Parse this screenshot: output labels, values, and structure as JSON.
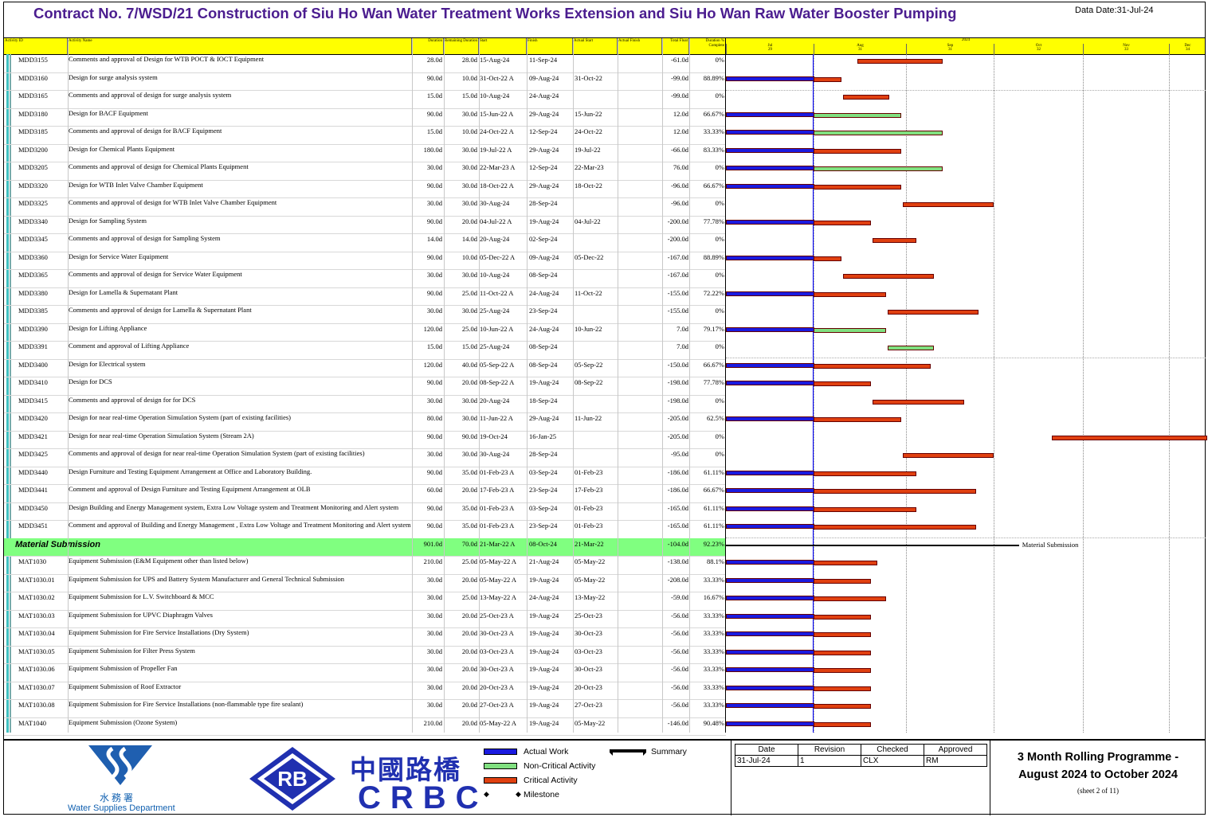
{
  "title": "Contract No. 7/WSD/21 Construction of Siu Ho Wan Water Treatment Works Extension and Siu Ho Wan Raw Water Booster Pumping",
  "data_date": "Data Date:31-Jul-24",
  "columns": {
    "id": "Activity ID",
    "name": "Activity Name",
    "duration": "Duration",
    "remaining": "Remaining Duration",
    "start": "Start",
    "finish": "Finish",
    "actual_start": "Actual Start",
    "actual_finish": "Actual Finish",
    "total_float": "Total Float",
    "pct": "Duration % Complete"
  },
  "timeline": {
    "year": "2024",
    "months": [
      "Jul",
      "Aug",
      "Sep",
      "Oct",
      "Nov",
      "Dec"
    ],
    "weeks": [
      "29",
      "31",
      "31",
      "32",
      "33",
      "34"
    ]
  },
  "summary_row": {
    "id": "Material Submission",
    "duration": "901.0d",
    "remaining": "70.0d",
    "start": "21-Mar-22 A",
    "finish": "08-Oct-24",
    "actual_start": "21-Mar-22",
    "total_float": "-104.0d",
    "pct": "92.23%",
    "bar_label": "Material Submission"
  },
  "rows": [
    {
      "id": "MDD3155",
      "name": "Comments and approval of Design for WTB POCT & IOCT Equipment",
      "duration": "28.0d",
      "remaining": "28.0d",
      "start": "15-Aug-24",
      "finish": "11-Sep-24",
      "actual_start": "",
      "total_float": "-61.0d",
      "pct": "0%"
    },
    {
      "id": "MDD3160",
      "name": "Design for surge analysis system",
      "duration": "90.0d",
      "remaining": "10.0d",
      "start": "31-Oct-22 A",
      "finish": "09-Aug-24",
      "actual_start": "31-Oct-22",
      "total_float": "-99.0d",
      "pct": "88.89%"
    },
    {
      "id": "MDD3165",
      "name": "Comments and approval of design for surge analysis system",
      "duration": "15.0d",
      "remaining": "15.0d",
      "start": "10-Aug-24",
      "finish": "24-Aug-24",
      "actual_start": "",
      "total_float": "-99.0d",
      "pct": "0%"
    },
    {
      "id": "MDD3180",
      "name": "Design for BACF Equipment",
      "duration": "90.0d",
      "remaining": "30.0d",
      "start": "15-Jun-22 A",
      "finish": "29-Aug-24",
      "actual_start": "15-Jun-22",
      "total_float": "12.0d",
      "pct": "66.67%"
    },
    {
      "id": "MDD3185",
      "name": "Comments and approval of design for BACF Equipment",
      "duration": "15.0d",
      "remaining": "10.0d",
      "start": "24-Oct-22 A",
      "finish": "12-Sep-24",
      "actual_start": "24-Oct-22",
      "total_float": "12.0d",
      "pct": "33.33%"
    },
    {
      "id": "MDD3200",
      "name": "Design for Chemical Plants Equipment",
      "duration": "180.0d",
      "remaining": "30.0d",
      "start": "19-Jul-22 A",
      "finish": "29-Aug-24",
      "actual_start": "19-Jul-22",
      "total_float": "-66.0d",
      "pct": "83.33%"
    },
    {
      "id": "MDD3205",
      "name": "Comments and approval of design for Chemical Plants Equipment",
      "duration": "30.0d",
      "remaining": "30.0d",
      "start": "22-Mar-23 A",
      "finish": "12-Sep-24",
      "actual_start": "22-Mar-23",
      "total_float": "76.0d",
      "pct": "0%"
    },
    {
      "id": "MDD3320",
      "name": "Design for WTB Inlet Valve Chamber Equipment",
      "duration": "90.0d",
      "remaining": "30.0d",
      "start": "18-Oct-22 A",
      "finish": "29-Aug-24",
      "actual_start": "18-Oct-22",
      "total_float": "-96.0d",
      "pct": "66.67%"
    },
    {
      "id": "MDD3325",
      "name": "Comments and approval of design for WTB Inlet Valve Chamber Equipment",
      "duration": "30.0d",
      "remaining": "30.0d",
      "start": "30-Aug-24",
      "finish": "28-Sep-24",
      "actual_start": "",
      "total_float": "-96.0d",
      "pct": "0%"
    },
    {
      "id": "MDD3340",
      "name": "Design for Sampling System",
      "duration": "90.0d",
      "remaining": "20.0d",
      "start": "04-Jul-22 A",
      "finish": "19-Aug-24",
      "actual_start": "04-Jul-22",
      "total_float": "-200.0d",
      "pct": "77.78%"
    },
    {
      "id": "MDD3345",
      "name": "Comments and approval of design for Sampling System",
      "duration": "14.0d",
      "remaining": "14.0d",
      "start": "20-Aug-24",
      "finish": "02-Sep-24",
      "actual_start": "",
      "total_float": "-200.0d",
      "pct": "0%"
    },
    {
      "id": "MDD3360",
      "name": "Design for Service Water Equipment",
      "duration": "90.0d",
      "remaining": "10.0d",
      "start": "05-Dec-22 A",
      "finish": "09-Aug-24",
      "actual_start": "05-Dec-22",
      "total_float": "-167.0d",
      "pct": "88.89%"
    },
    {
      "id": "MDD3365",
      "name": "Comments and approval of design for Service Water Equipment",
      "duration": "30.0d",
      "remaining": "30.0d",
      "start": "10-Aug-24",
      "finish": "08-Sep-24",
      "actual_start": "",
      "total_float": "-167.0d",
      "pct": "0%"
    },
    {
      "id": "MDD3380",
      "name": "Design for Lamella & Supernatant Plant",
      "duration": "90.0d",
      "remaining": "25.0d",
      "start": "11-Oct-22 A",
      "finish": "24-Aug-24",
      "actual_start": "11-Oct-22",
      "total_float": "-155.0d",
      "pct": "72.22%"
    },
    {
      "id": "MDD3385",
      "name": "Comments and approval of design for Lamella & Supernatant Plant",
      "duration": "30.0d",
      "remaining": "30.0d",
      "start": "25-Aug-24",
      "finish": "23-Sep-24",
      "actual_start": "",
      "total_float": "-155.0d",
      "pct": "0%"
    },
    {
      "id": "MDD3390",
      "name": "Design for Lifting Appliance",
      "duration": "120.0d",
      "remaining": "25.0d",
      "start": "10-Jun-22 A",
      "finish": "24-Aug-24",
      "actual_start": "10-Jun-22",
      "total_float": "7.0d",
      "pct": "79.17%"
    },
    {
      "id": "MDD3391",
      "name": "Comment and approval of Lifting Appliance",
      "duration": "15.0d",
      "remaining": "15.0d",
      "start": "25-Aug-24",
      "finish": "08-Sep-24",
      "actual_start": "",
      "total_float": "7.0d",
      "pct": "0%"
    },
    {
      "id": "MDD3400",
      "name": "Design for Electrical system",
      "duration": "120.0d",
      "remaining": "40.0d",
      "start": "05-Sep-22 A",
      "finish": "08-Sep-24",
      "actual_start": "05-Sep-22",
      "total_float": "-150.0d",
      "pct": "66.67%"
    },
    {
      "id": "MDD3410",
      "name": "Design for DCS",
      "duration": "90.0d",
      "remaining": "20.0d",
      "start": "08-Sep-22 A",
      "finish": "19-Aug-24",
      "actual_start": "08-Sep-22",
      "total_float": "-198.0d",
      "pct": "77.78%"
    },
    {
      "id": "MDD3415",
      "name": "Comments and approval of design for for DCS",
      "duration": "30.0d",
      "remaining": "30.0d",
      "start": "20-Aug-24",
      "finish": "18-Sep-24",
      "actual_start": "",
      "total_float": "-198.0d",
      "pct": "0%"
    },
    {
      "id": "MDD3420",
      "name": "Design for near real-time Operation Simulation System (part of existing facilities)",
      "duration": "80.0d",
      "remaining": "30.0d",
      "start": "11-Jun-22 A",
      "finish": "29-Aug-24",
      "actual_start": "11-Jun-22",
      "total_float": "-205.0d",
      "pct": "62.5%"
    },
    {
      "id": "MDD3421",
      "name": "Design for near real-time Operation Simulation System (Stream 2A)",
      "duration": "90.0d",
      "remaining": "90.0d",
      "start": "19-Oct-24",
      "finish": "16-Jan-25",
      "actual_start": "",
      "total_float": "-205.0d",
      "pct": "0%"
    },
    {
      "id": "MDD3425",
      "name": "Comments and approval of design for near real-time Operation Simulation System (part of existing facilities)",
      "duration": "30.0d",
      "remaining": "30.0d",
      "start": "30-Aug-24",
      "finish": "28-Sep-24",
      "actual_start": "",
      "total_float": "-95.0d",
      "pct": "0%"
    },
    {
      "id": "MDD3440",
      "name": "Design Furniture and Testing Equipment Arrangement at Office and Laboratory Building.",
      "duration": "90.0d",
      "remaining": "35.0d",
      "start": "01-Feb-23 A",
      "finish": "03-Sep-24",
      "actual_start": "01-Feb-23",
      "total_float": "-186.0d",
      "pct": "61.11%"
    },
    {
      "id": "MDD3441",
      "name": "Comment and approval of Design Furniture and Testing Equipment Arrangement at OLB",
      "duration": "60.0d",
      "remaining": "20.0d",
      "start": "17-Feb-23 A",
      "finish": "23-Sep-24",
      "actual_start": "17-Feb-23",
      "total_float": "-186.0d",
      "pct": "66.67%"
    },
    {
      "id": "MDD3450",
      "name": "Design Building and Energy Management system, Extra Low Voltage system and Treatment Monitoring and Alert system",
      "duration": "90.0d",
      "remaining": "35.0d",
      "start": "01-Feb-23 A",
      "finish": "03-Sep-24",
      "actual_start": "01-Feb-23",
      "total_float": "-165.0d",
      "pct": "61.11%"
    },
    {
      "id": "MDD3451",
      "name": "Comment and approval of Building and Energy Management , Extra Low Voltage and Treatment Monitoring and Alert system",
      "duration": "90.0d",
      "remaining": "35.0d",
      "start": "01-Feb-23 A",
      "finish": "23-Sep-24",
      "actual_start": "01-Feb-23",
      "total_float": "-165.0d",
      "pct": "61.11%"
    },
    {
      "id": "MAT1030",
      "name": "Equipment Submission (E&M Equipment other than listed below)",
      "duration": "210.0d",
      "remaining": "25.0d",
      "start": "05-May-22 A",
      "finish": "21-Aug-24",
      "actual_start": "05-May-22",
      "total_float": "-138.0d",
      "pct": "88.1%"
    },
    {
      "id": "MAT1030.01",
      "name": "Equipment Submission for UPS and Battery System Manufacturer and General Technical Submission",
      "duration": "30.0d",
      "remaining": "20.0d",
      "start": "05-May-22 A",
      "finish": "19-Aug-24",
      "actual_start": "05-May-22",
      "total_float": "-208.0d",
      "pct": "33.33%"
    },
    {
      "id": "MAT1030.02",
      "name": "Equipment Submission for L.V. Switchboard & MCC",
      "duration": "30.0d",
      "remaining": "25.0d",
      "start": "13-May-22 A",
      "finish": "24-Aug-24",
      "actual_start": "13-May-22",
      "total_float": "-59.0d",
      "pct": "16.67%"
    },
    {
      "id": "MAT1030.03",
      "name": "Equipment Submission for UPVC Diaphragm Valves",
      "duration": "30.0d",
      "remaining": "20.0d",
      "start": "25-Oct-23 A",
      "finish": "19-Aug-24",
      "actual_start": "25-Oct-23",
      "total_float": "-56.0d",
      "pct": "33.33%"
    },
    {
      "id": "MAT1030.04",
      "name": "Equipment Submission for Fire Service Installations (Dry System)",
      "duration": "30.0d",
      "remaining": "20.0d",
      "start": "30-Oct-23 A",
      "finish": "19-Aug-24",
      "actual_start": "30-Oct-23",
      "total_float": "-56.0d",
      "pct": "33.33%"
    },
    {
      "id": "MAT1030.05",
      "name": "Equipment Submission for Filter Press System",
      "duration": "30.0d",
      "remaining": "20.0d",
      "start": "03-Oct-23 A",
      "finish": "19-Aug-24",
      "actual_start": "03-Oct-23",
      "total_float": "-56.0d",
      "pct": "33.33%"
    },
    {
      "id": "MAT1030.06",
      "name": "Equipment Submission of Propeller Fan",
      "duration": "30.0d",
      "remaining": "20.0d",
      "start": "30-Oct-23 A",
      "finish": "19-Aug-24",
      "actual_start": "30-Oct-23",
      "total_float": "-56.0d",
      "pct": "33.33%"
    },
    {
      "id": "MAT1030.07",
      "name": "Equipment Submission of Roof Extractor",
      "duration": "30.0d",
      "remaining": "20.0d",
      "start": "20-Oct-23 A",
      "finish": "19-Aug-24",
      "actual_start": "20-Oct-23",
      "total_float": "-56.0d",
      "pct": "33.33%"
    },
    {
      "id": "MAT1030.08",
      "name": "Equipment Submission for Fire Service Installations (non-flammable type fire sealant)",
      "duration": "30.0d",
      "remaining": "20.0d",
      "start": "27-Oct-23 A",
      "finish": "19-Aug-24",
      "actual_start": "27-Oct-23",
      "total_float": "-56.0d",
      "pct": "33.33%"
    },
    {
      "id": "MAT1040",
      "name": "Equipment Submission (Ozone System)",
      "duration": "210.0d",
      "remaining": "20.0d",
      "start": "05-May-22 A",
      "finish": "19-Aug-24",
      "actual_start": "05-May-22",
      "total_float": "-146.0d",
      "pct": "90.48%"
    }
  ],
  "legend": {
    "actual": "Actual Work",
    "noncritical": "Non-Critical Activity",
    "critical": "Critical Activity",
    "milestone": "Milestone",
    "summary": "Summary"
  },
  "colors": {
    "actual": "#1a1ae0",
    "noncritical": "#80e080",
    "critical": "#e04010",
    "header": "#ffff00",
    "summary_row": "#80ff80",
    "title": "#4b1d8f"
  },
  "revision": {
    "headers": [
      "Date",
      "Revision",
      "Checked",
      "Approved"
    ],
    "values": [
      "31-Jul-24",
      "1",
      "CLX",
      "RM"
    ]
  },
  "programme": {
    "line1": "3 Month Rolling Programme -",
    "line2": "August 2024 to October 2024",
    "sheet": "(sheet 2 of 11)"
  },
  "logos": {
    "wsd_cn": "水務署",
    "wsd_en": "Water Supplies Department",
    "rb": "RB",
    "crbc_cn": "中國路橋",
    "crbc_en": "CRBC"
  }
}
